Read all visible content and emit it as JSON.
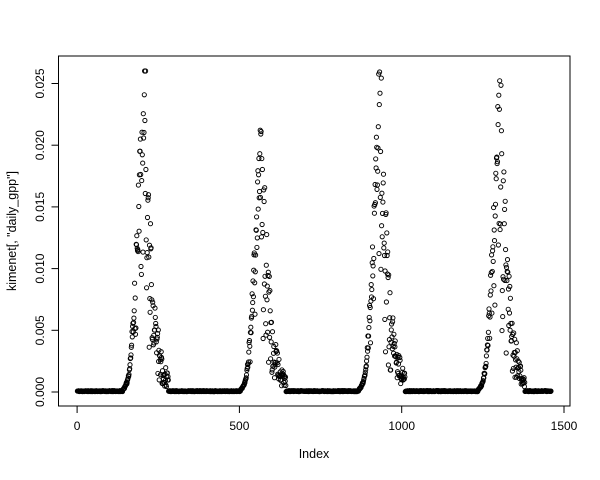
{
  "window": {
    "background_color": "#ffffff",
    "plot_foreground_color": "#000000"
  },
  "chart_data": {
    "type": "scatter",
    "title": "",
    "xlabel": "Index",
    "ylabel": "kimenet[, \"daily_gpp\"]",
    "x_ticks": [
      0,
      500,
      1000,
      1500
    ],
    "x_tick_labels": [
      "0",
      "500",
      "1000",
      "1500"
    ],
    "y_ticks": [
      0,
      0.005,
      0.01,
      0.015,
      0.02,
      0.025
    ],
    "y_tick_labels": [
      "0.000",
      "0.005",
      "0.010",
      "0.015",
      "0.020",
      "0.025"
    ],
    "xlim": [
      -57,
      1518
    ],
    "ylim": [
      -0.001,
      0.0269
    ],
    "grid": false,
    "legend": null,
    "marker": {
      "shape": "open-circle",
      "color": "#000000"
    },
    "n_points": 1460,
    "points_per_year": 365,
    "description": "Daily GPP time series over four annual cycles: values sit at ~0 during dormancy (days 0-140 of each year), ramp up steeply around day 140-168, reach a scattered summer peak near day 200-206, then decline with heavy scatter until about day 278-283 before returning to zero.",
    "years": [
      {
        "start_index": 0,
        "dormant_value": 0.0001,
        "green_up_start": 140,
        "rise_start": 168,
        "peak_day": 205,
        "peak_value": 0.0255,
        "senescence_end": 280
      },
      {
        "start_index": 365,
        "dormant_value": 0.0001,
        "green_up_start": 138,
        "rise_start": 166,
        "peak_day": 200,
        "peak_value": 0.0207,
        "senescence_end": 277
      },
      {
        "start_index": 730,
        "dormant_value": 0.0001,
        "green_up_start": 137,
        "rise_start": 166,
        "peak_day": 201,
        "peak_value": 0.0253,
        "senescence_end": 279
      },
      {
        "start_index": 1095,
        "dormant_value": 0.0001,
        "green_up_start": 140,
        "rise_start": 169,
        "peak_day": 206,
        "peak_value": 0.0246,
        "senescence_end": 283
      }
    ]
  }
}
